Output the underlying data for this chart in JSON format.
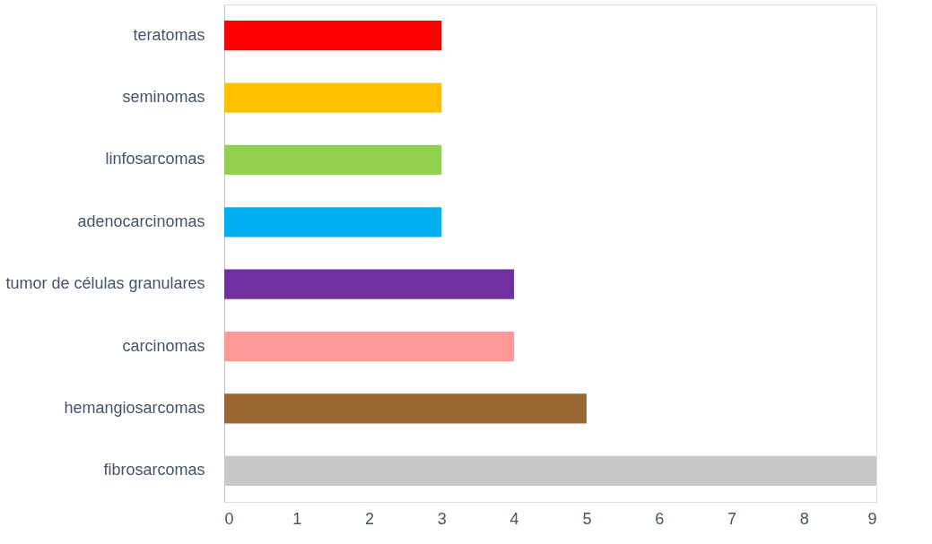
{
  "chart_data": {
    "type": "bar",
    "orientation": "horizontal",
    "categories": [
      "teratomas",
      "seminomas",
      "linfosarcomas",
      "adenocarcinomas",
      "tumor de células granulares",
      "carcinomas",
      "hemangiosarcomas",
      "fibrosarcomas"
    ],
    "values": [
      3,
      3,
      3,
      3,
      4,
      4,
      5,
      9
    ],
    "colors": [
      "#ff0000",
      "#ffc000",
      "#92d050",
      "#00b0f0",
      "#7030a0",
      "#ff9999",
      "#996633",
      "#c8c8c8"
    ],
    "xlim": [
      0,
      9
    ],
    "xticks": [
      0,
      1,
      2,
      3,
      4,
      5,
      6,
      7,
      8,
      9
    ],
    "grid": false,
    "legend": false
  }
}
